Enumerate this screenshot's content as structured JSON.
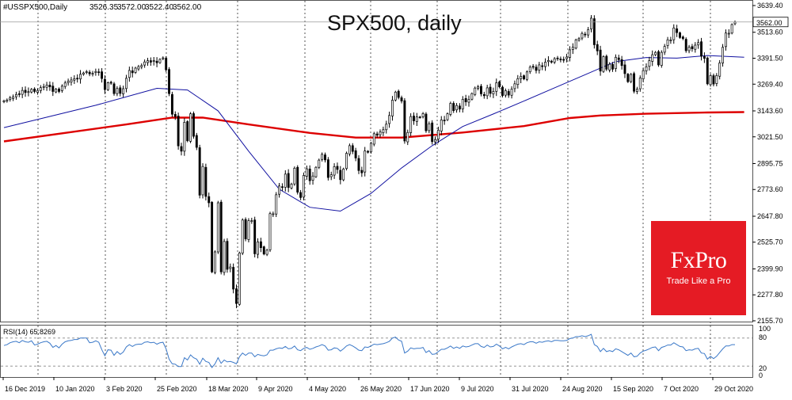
{
  "chart_data": [
    {
      "type": "candlestick",
      "symbol_info": "#USSPX500,Daily",
      "ohlc_header": {
        "open": "3526.35",
        "high": "3572.00",
        "low": "3522.40",
        "close": "3562.00"
      },
      "title": "SPX500, daily",
      "last_price_label": "3562.00",
      "price_axis_ticks": [
        "3639.40",
        "3513.60",
        "3391.50",
        "3269.40",
        "3143.60",
        "3021.50",
        "2895.75",
        "2773.60",
        "2647.80",
        "2525.70",
        "2399.90",
        "2277.80",
        "2155.70"
      ],
      "date_labels": [
        "16 Dec 2019",
        "10 Jan 2020",
        "3 Feb 2020",
        "25 Feb 2020",
        "18 Mar 2020",
        "9 Apr 2020",
        "4 May 2020",
        "26 May 2020",
        "17 Jun 2020",
        "9 Jul 2020",
        "31 Jul 2020",
        "24 Aug 2020",
        "15 Sep 2020",
        "7 Oct 2020",
        "29 Oct 2020"
      ],
      "ylim": [
        2155.7,
        3639.4
      ],
      "colors": {
        "candle": "#000000",
        "ma_fast": "#1010a0",
        "ma_slow": "#dd0000",
        "grid": "#666666"
      },
      "close_series": [
        3191,
        3195,
        3205,
        3210,
        3221,
        3224,
        3240,
        3230,
        3234,
        3245,
        3235,
        3240,
        3253,
        3258,
        3265,
        3257,
        3235,
        3246,
        3235,
        3260,
        3275,
        3283,
        3289,
        3295,
        3297,
        3316,
        3322,
        3328,
        3318,
        3320,
        3329,
        3326,
        3296,
        3244,
        3276,
        3274,
        3225,
        3249,
        3226,
        3248,
        3297,
        3334,
        3323,
        3345,
        3352,
        3357,
        3374,
        3380,
        3373,
        3380,
        3370,
        3386,
        3393,
        3337,
        3225,
        3128,
        3117,
        2979,
        2954,
        3090,
        3003,
        3130,
        3024,
        2972,
        2747,
        2882,
        2741,
        2711,
        2386,
        2480,
        2711,
        2386,
        2529,
        2398,
        2409,
        2305,
        2237,
        2475,
        2630,
        2541,
        2627,
        2627,
        2471,
        2527,
        2500,
        2470,
        2488,
        2660,
        2659,
        2749,
        2790,
        2784,
        2846,
        2783,
        2799,
        2874,
        2761,
        2736,
        2840,
        2871,
        2815,
        2837,
        2878,
        2912,
        2939,
        2913,
        2830,
        2843,
        2881,
        2868,
        2820,
        2870,
        2944,
        2980,
        2953,
        2922,
        2863,
        2852,
        2955,
        2949,
        2991,
        3036,
        3029,
        3044,
        3055,
        3081,
        3122,
        3194,
        3232,
        3207,
        3190,
        3002,
        3042,
        3117,
        3097,
        3115,
        3113,
        3131,
        3050,
        3083,
        2999,
        3009,
        3053,
        3101,
        3100,
        3130,
        3179,
        3145,
        3169,
        3152,
        3198,
        3186,
        3197,
        3225,
        3251,
        3257,
        3224,
        3215,
        3252,
        3226,
        3235,
        3276,
        3257,
        3216,
        3239,
        3218,
        3246,
        3271,
        3295,
        3306,
        3294,
        3327,
        3349,
        3351,
        3334,
        3360,
        3353,
        3373,
        3381,
        3373,
        3389,
        3390,
        3385,
        3385,
        3397,
        3431,
        3443,
        3478,
        3484,
        3508,
        3501,
        3526,
        3580,
        3455,
        3426,
        3331,
        3399,
        3340,
        3363,
        3340,
        3396,
        3385,
        3357,
        3319,
        3281,
        3315,
        3236,
        3246,
        3298,
        3333,
        3351,
        3380,
        3408,
        3419,
        3360,
        3419,
        3447,
        3478,
        3477,
        3534,
        3512,
        3489,
        3484,
        3427,
        3443,
        3436,
        3453,
        3465,
        3401,
        3391,
        3271,
        3310,
        3270,
        3310,
        3369,
        3443,
        3510,
        3509,
        3550,
        3562
      ],
      "ma_fast_points": [
        [
          0,
          3065
        ],
        [
          30,
          3170
        ],
        [
          50,
          3250
        ],
        [
          60,
          3242
        ],
        [
          70,
          3144
        ],
        [
          80,
          2954
        ],
        [
          90,
          2775
        ],
        [
          100,
          2690
        ],
        [
          110,
          2672
        ],
        [
          120,
          2755
        ],
        [
          130,
          2875
        ],
        [
          140,
          2980
        ],
        [
          150,
          3070
        ],
        [
          160,
          3129
        ],
        [
          170,
          3190
        ],
        [
          180,
          3252
        ],
        [
          190,
          3314
        ],
        [
          200,
          3376
        ],
        [
          210,
          3395
        ],
        [
          220,
          3392
        ],
        [
          230,
          3404
        ],
        [
          242,
          3396
        ]
      ],
      "ma_slow_points": [
        [
          0,
          3000
        ],
        [
          20,
          3040
        ],
        [
          40,
          3080
        ],
        [
          55,
          3112
        ],
        [
          65,
          3112
        ],
        [
          80,
          3080
        ],
        [
          100,
          3040
        ],
        [
          115,
          3018
        ],
        [
          130,
          3018
        ],
        [
          150,
          3042
        ],
        [
          170,
          3072
        ],
        [
          185,
          3110
        ],
        [
          195,
          3122
        ],
        [
          210,
          3130
        ],
        [
          230,
          3136
        ],
        [
          242,
          3138
        ]
      ],
      "grid": "vertical-dashed"
    },
    {
      "type": "line",
      "label": "RSI(14) 65.8269",
      "ylim": [
        0,
        100
      ],
      "levels": [
        20,
        80
      ],
      "axis_ticks": [
        "100",
        "80",
        "20",
        "0"
      ],
      "color": "#3a78c8",
      "values": [
        64,
        66,
        70,
        72,
        73,
        70,
        75,
        72,
        71,
        74,
        65,
        67,
        70,
        72,
        73,
        69,
        60,
        64,
        59,
        67,
        72,
        74,
        75,
        77,
        77,
        80,
        80,
        80,
        70,
        71,
        74,
        71,
        55,
        42,
        55,
        54,
        43,
        51,
        45,
        50,
        61,
        66,
        62,
        66,
        67,
        67,
        71,
        72,
        70,
        71,
        67,
        70,
        71,
        57,
        35,
        25,
        24,
        19,
        19,
        38,
        33,
        44,
        38,
        35,
        24,
        37,
        30,
        28,
        17,
        25,
        38,
        26,
        33,
        29,
        30,
        28,
        25,
        40,
        48,
        43,
        48,
        48,
        40,
        45,
        43,
        42,
        44,
        54,
        54,
        57,
        59,
        58,
        62,
        57,
        58,
        63,
        55,
        53,
        58,
        60,
        56,
        58,
        61,
        63,
        66,
        63,
        54,
        55,
        59,
        58,
        52,
        57,
        63,
        66,
        63,
        59,
        54,
        53,
        61,
        60,
        63,
        67,
        66,
        67,
        68,
        70,
        73,
        80,
        82,
        76,
        73,
        48,
        52,
        59,
        57,
        58,
        58,
        60,
        49,
        53,
        45,
        46,
        51,
        56,
        56,
        59,
        63,
        58,
        61,
        58,
        63,
        61,
        62,
        65,
        68,
        68,
        62,
        60,
        65,
        61,
        62,
        67,
        63,
        57,
        60,
        57,
        61,
        64,
        67,
        68,
        66,
        70,
        72,
        72,
        69,
        72,
        71,
        73,
        74,
        72,
        75,
        75,
        74,
        74,
        75,
        79,
        80,
        83,
        83,
        85,
        83,
        85,
        88,
        66,
        62,
        51,
        58,
        51,
        53,
        51,
        57,
        55,
        51,
        47,
        43,
        48,
        40,
        41,
        48,
        52,
        54,
        57,
        60,
        61,
        53,
        60,
        62,
        65,
        65,
        70,
        66,
        62,
        61,
        53,
        55,
        54,
        57,
        58,
        48,
        47,
        35,
        41,
        36,
        41,
        49,
        57,
        63,
        63,
        66,
        66
      ]
    }
  ],
  "brand": {
    "name": "FxPro",
    "tagline": "Trade Like a Pro"
  }
}
